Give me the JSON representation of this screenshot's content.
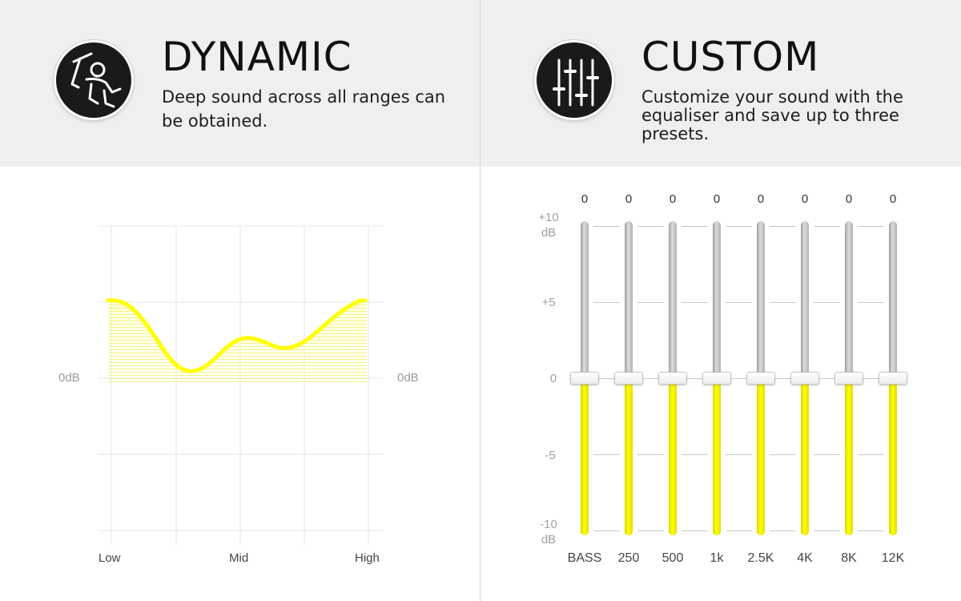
{
  "dynamic": {
    "icon": "dancing-figure-icon",
    "title": "DYNAMIC",
    "description_lines": [
      "Deep sound across all ranges can",
      "be obtained."
    ],
    "chart": {
      "left_label": "0dB",
      "right_label": "0dB",
      "x_labels": [
        "Low",
        "Mid",
        "High"
      ],
      "curve_color": "#ffff00"
    }
  },
  "custom": {
    "icon": "equalizer-sliders-icon",
    "title": "CUSTOM",
    "description_lines": [
      "Customize your sound with the",
      "equaliser and save up to three",
      "presets."
    ],
    "scale": {
      "plus10_num": "+10",
      "plus10_unit": "dB",
      "plus5": "+5",
      "zero": "0",
      "minus5": "-5",
      "minus10_num": "-10",
      "minus10_unit": "dB"
    },
    "bands": [
      {
        "label": "BASS",
        "value": "0"
      },
      {
        "label": "250",
        "value": "0"
      },
      {
        "label": "500",
        "value": "0"
      },
      {
        "label": "1k",
        "value": "0"
      },
      {
        "label": "2.5K",
        "value": "0"
      },
      {
        "label": "4K",
        "value": "0"
      },
      {
        "label": "8K",
        "value": "0"
      },
      {
        "label": "12K",
        "value": "0"
      }
    ],
    "accent_color": "#ffff00"
  }
}
